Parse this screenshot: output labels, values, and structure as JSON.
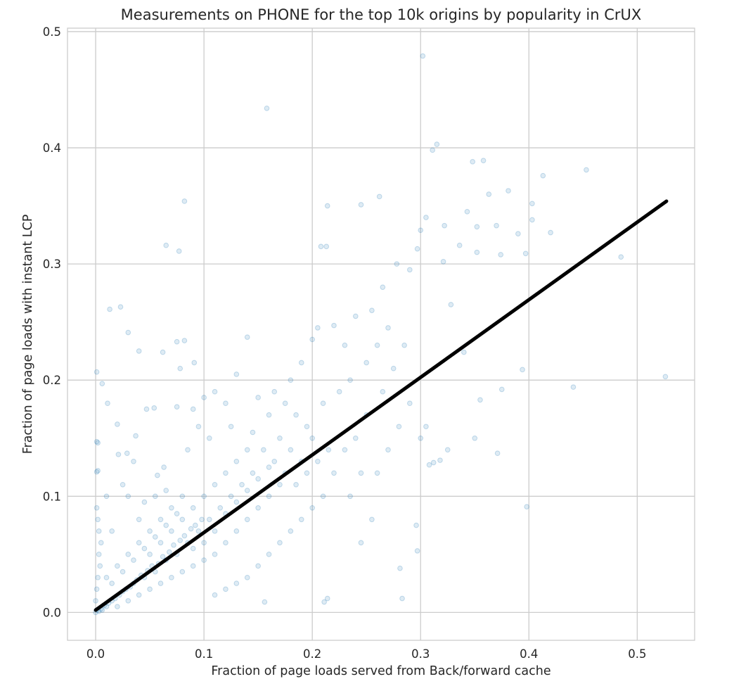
{
  "chart_data": {
    "type": "scatter",
    "title": "Measurements on PHONE for the top 10k origins by popularity in CrUX",
    "xlabel": "Fraction of page loads served from Back/forward cache",
    "ylabel": "Fraction of page loads with instant LCP",
    "xlim": [
      -0.026,
      0.553
    ],
    "ylim": [
      -0.024,
      0.503
    ],
    "xticks": [
      0.0,
      0.1,
      0.2,
      0.3,
      0.4,
      0.5
    ],
    "xtick_labels": [
      "0.0",
      "0.1",
      "0.2",
      "0.3",
      "0.4",
      "0.5"
    ],
    "yticks": [
      0.0,
      0.1,
      0.2,
      0.3,
      0.4,
      0.5
    ],
    "ytick_labels": [
      "0.0",
      "0.1",
      "0.2",
      "0.3",
      "0.4",
      "0.5"
    ],
    "grid": true,
    "point_color": "#1f77b4",
    "point_alpha": 0.15,
    "trend_line": {
      "color": "#000000",
      "x": [
        0.0,
        0.527
      ],
      "y": [
        0.002,
        0.354
      ]
    },
    "points": [
      [
        0.302,
        0.479
      ],
      [
        0.158,
        0.434
      ],
      [
        0.315,
        0.403
      ],
      [
        0.311,
        0.398
      ],
      [
        0.348,
        0.388
      ],
      [
        0.358,
        0.389
      ],
      [
        0.453,
        0.381
      ],
      [
        0.413,
        0.376
      ],
      [
        0.363,
        0.36
      ],
      [
        0.381,
        0.363
      ],
      [
        0.082,
        0.354
      ],
      [
        0.245,
        0.351
      ],
      [
        0.262,
        0.358
      ],
      [
        0.214,
        0.35
      ],
      [
        0.403,
        0.352
      ],
      [
        0.403,
        0.338
      ],
      [
        0.42,
        0.327
      ],
      [
        0.305,
        0.34
      ],
      [
        0.3,
        0.329
      ],
      [
        0.322,
        0.333
      ],
      [
        0.352,
        0.332
      ],
      [
        0.37,
        0.333
      ],
      [
        0.39,
        0.326
      ],
      [
        0.065,
        0.316
      ],
      [
        0.077,
        0.311
      ],
      [
        0.208,
        0.315
      ],
      [
        0.213,
        0.315
      ],
      [
        0.297,
        0.313
      ],
      [
        0.352,
        0.31
      ],
      [
        0.374,
        0.308
      ],
      [
        0.397,
        0.309
      ],
      [
        0.485,
        0.306
      ],
      [
        0.321,
        0.302
      ],
      [
        0.013,
        0.261
      ],
      [
        0.023,
        0.263
      ],
      [
        0.03,
        0.241
      ],
      [
        0.04,
        0.225
      ],
      [
        0.062,
        0.224
      ],
      [
        0.075,
        0.233
      ],
      [
        0.082,
        0.234
      ],
      [
        0.001,
        0.207
      ],
      [
        0.006,
        0.197
      ],
      [
        0.091,
        0.215
      ],
      [
        0.078,
        0.21
      ],
      [
        0.526,
        0.203
      ],
      [
        0.441,
        0.194
      ],
      [
        0.394,
        0.209
      ],
      [
        0.375,
        0.192
      ],
      [
        0.011,
        0.18
      ],
      [
        0.02,
        0.162
      ],
      [
        0.047,
        0.175
      ],
      [
        0.054,
        0.176
      ],
      [
        0.075,
        0.177
      ],
      [
        0.09,
        0.175
      ],
      [
        0.001,
        0.147
      ],
      [
        0.002,
        0.146
      ],
      [
        0.001,
        0.121
      ],
      [
        0.002,
        0.122
      ],
      [
        0.029,
        0.137
      ],
      [
        0.021,
        0.136
      ],
      [
        0.037,
        0.152
      ],
      [
        0.035,
        0.13
      ],
      [
        0.057,
        0.118
      ],
      [
        0.063,
        0.125
      ],
      [
        0.398,
        0.091
      ],
      [
        0.371,
        0.137
      ],
      [
        0.35,
        0.15
      ],
      [
        0.296,
        0.075
      ],
      [
        0.297,
        0.053
      ],
      [
        0.281,
        0.038
      ],
      [
        0.283,
        0.012
      ],
      [
        0.214,
        0.012
      ],
      [
        0.211,
        0.009
      ],
      [
        0.156,
        0.009
      ],
      [
        0.343,
        0.345
      ],
      [
        0.336,
        0.316
      ],
      [
        0.328,
        0.265
      ],
      [
        0.34,
        0.224
      ],
      [
        0.355,
        0.183
      ],
      [
        0.305,
        0.16
      ],
      [
        0.312,
        0.129
      ],
      [
        0.318,
        0.131
      ],
      [
        0.308,
        0.127
      ],
      [
        0.325,
        0.14
      ],
      [
        0.3,
        0.15
      ],
      [
        0.29,
        0.295
      ],
      [
        0.278,
        0.3
      ],
      [
        0.265,
        0.28
      ],
      [
        0.255,
        0.26
      ],
      [
        0.24,
        0.255
      ],
      [
        0.23,
        0.23
      ],
      [
        0.22,
        0.247
      ],
      [
        0.205,
        0.245
      ],
      [
        0.2,
        0.235
      ],
      [
        0.19,
        0.215
      ],
      [
        0.18,
        0.2
      ],
      [
        0.175,
        0.18
      ],
      [
        0.165,
        0.19
      ],
      [
        0.15,
        0.185
      ],
      [
        0.14,
        0.237
      ],
      [
        0.13,
        0.205
      ],
      [
        0.12,
        0.18
      ],
      [
        0.11,
        0.19
      ],
      [
        0.1,
        0.185
      ],
      [
        0.095,
        0.16
      ],
      [
        0.085,
        0.14
      ],
      [
        0.105,
        0.15
      ],
      [
        0.125,
        0.16
      ],
      [
        0.145,
        0.155
      ],
      [
        0.16,
        0.17
      ],
      [
        0.17,
        0.15
      ],
      [
        0.185,
        0.17
      ],
      [
        0.195,
        0.16
      ],
      [
        0.21,
        0.18
      ],
      [
        0.225,
        0.19
      ],
      [
        0.235,
        0.2
      ],
      [
        0.25,
        0.215
      ],
      [
        0.26,
        0.23
      ],
      [
        0.27,
        0.245
      ],
      [
        0.285,
        0.23
      ],
      [
        0.275,
        0.21
      ],
      [
        0.265,
        0.19
      ],
      [
        0.25,
        0.17
      ],
      [
        0.24,
        0.15
      ],
      [
        0.23,
        0.14
      ],
      [
        0.22,
        0.12
      ],
      [
        0.21,
        0.1
      ],
      [
        0.2,
        0.09
      ],
      [
        0.19,
        0.08
      ],
      [
        0.18,
        0.07
      ],
      [
        0.17,
        0.06
      ],
      [
        0.16,
        0.05
      ],
      [
        0.15,
        0.04
      ],
      [
        0.14,
        0.03
      ],
      [
        0.13,
        0.025
      ],
      [
        0.12,
        0.02
      ],
      [
        0.11,
        0.015
      ],
      [
        0.245,
        0.06
      ],
      [
        0.255,
        0.08
      ],
      [
        0.235,
        0.1
      ],
      [
        0.26,
        0.12
      ],
      [
        0.27,
        0.14
      ],
      [
        0.28,
        0.16
      ],
      [
        0.29,
        0.18
      ],
      [
        0.245,
        0.12
      ],
      [
        0.215,
        0.14
      ],
      [
        0.205,
        0.13
      ],
      [
        0.195,
        0.12
      ],
      [
        0.185,
        0.11
      ],
      [
        0.175,
        0.12
      ],
      [
        0.165,
        0.13
      ],
      [
        0.155,
        0.14
      ],
      [
        0.145,
        0.12
      ],
      [
        0.135,
        0.11
      ],
      [
        0.125,
        0.1
      ],
      [
        0.115,
        0.09
      ],
      [
        0.105,
        0.08
      ],
      [
        0.095,
        0.07
      ],
      [
        0.16,
        0.1
      ],
      [
        0.15,
        0.09
      ],
      [
        0.14,
        0.08
      ],
      [
        0.13,
        0.07
      ],
      [
        0.12,
        0.06
      ],
      [
        0.11,
        0.05
      ],
      [
        0.1,
        0.045
      ],
      [
        0.09,
        0.04
      ],
      [
        0.17,
        0.11
      ],
      [
        0.18,
        0.14
      ],
      [
        0.19,
        0.13
      ],
      [
        0.2,
        0.15
      ],
      [
        0.14,
        0.14
      ],
      [
        0.13,
        0.13
      ],
      [
        0.12,
        0.12
      ],
      [
        0.11,
        0.11
      ],
      [
        0.1,
        0.1
      ],
      [
        0.09,
        0.09
      ],
      [
        0.08,
        0.08
      ],
      [
        0.07,
        0.07
      ],
      [
        0.06,
        0.06
      ],
      [
        0.05,
        0.05
      ],
      [
        0.085,
        0.06
      ],
      [
        0.075,
        0.05
      ],
      [
        0.065,
        0.045
      ],
      [
        0.055,
        0.035
      ],
      [
        0.045,
        0.03
      ],
      [
        0.035,
        0.025
      ],
      [
        0.025,
        0.018
      ],
      [
        0.015,
        0.01
      ],
      [
        0.01,
        0.005
      ],
      [
        0.005,
        0.003
      ],
      [
        0.08,
        0.1
      ],
      [
        0.07,
        0.09
      ],
      [
        0.06,
        0.08
      ],
      [
        0.05,
        0.07
      ],
      [
        0.04,
        0.06
      ],
      [
        0.03,
        0.05
      ],
      [
        0.02,
        0.04
      ],
      [
        0.01,
        0.03
      ],
      [
        0.005,
        0.06
      ],
      [
        0.002,
        0.08
      ],
      [
        0.001,
        0.09
      ],
      [
        0.003,
        0.05
      ],
      [
        0.002,
        0.03
      ],
      [
        0.001,
        0.02
      ],
      [
        0.0,
        0.01
      ],
      [
        0.0,
        0.0
      ],
      [
        0.001,
        0.002
      ],
      [
        0.003,
        0.001
      ],
      [
        0.006,
        0.002
      ],
      [
        0.008,
        0.006
      ],
      [
        0.012,
        0.008
      ],
      [
        0.018,
        0.012
      ],
      [
        0.022,
        0.015
      ],
      [
        0.028,
        0.02
      ],
      [
        0.032,
        0.022
      ],
      [
        0.038,
        0.028
      ],
      [
        0.042,
        0.032
      ],
      [
        0.048,
        0.036
      ],
      [
        0.052,
        0.04
      ],
      [
        0.058,
        0.042
      ],
      [
        0.062,
        0.048
      ],
      [
        0.068,
        0.052
      ],
      [
        0.072,
        0.058
      ],
      [
        0.078,
        0.062
      ],
      [
        0.082,
        0.066
      ],
      [
        0.088,
        0.072
      ],
      [
        0.092,
        0.075
      ],
      [
        0.098,
        0.08
      ],
      [
        0.015,
        0.025
      ],
      [
        0.025,
        0.035
      ],
      [
        0.035,
        0.045
      ],
      [
        0.045,
        0.055
      ],
      [
        0.055,
        0.065
      ],
      [
        0.065,
        0.075
      ],
      [
        0.075,
        0.085
      ],
      [
        0.02,
        0.005
      ],
      [
        0.03,
        0.01
      ],
      [
        0.04,
        0.015
      ],
      [
        0.05,
        0.02
      ],
      [
        0.06,
        0.025
      ],
      [
        0.07,
        0.03
      ],
      [
        0.08,
        0.035
      ],
      [
        0.09,
        0.055
      ],
      [
        0.1,
        0.06
      ],
      [
        0.11,
        0.07
      ],
      [
        0.12,
        0.085
      ],
      [
        0.13,
        0.095
      ],
      [
        0.14,
        0.105
      ],
      [
        0.15,
        0.115
      ],
      [
        0.16,
        0.125
      ],
      [
        0.03,
        0.1
      ],
      [
        0.025,
        0.11
      ],
      [
        0.045,
        0.095
      ],
      [
        0.055,
        0.1
      ],
      [
        0.065,
        0.105
      ],
      [
        0.04,
        0.08
      ],
      [
        0.015,
        0.07
      ],
      [
        0.01,
        0.1
      ],
      [
        0.004,
        0.04
      ],
      [
        0.003,
        0.07
      ]
    ]
  }
}
